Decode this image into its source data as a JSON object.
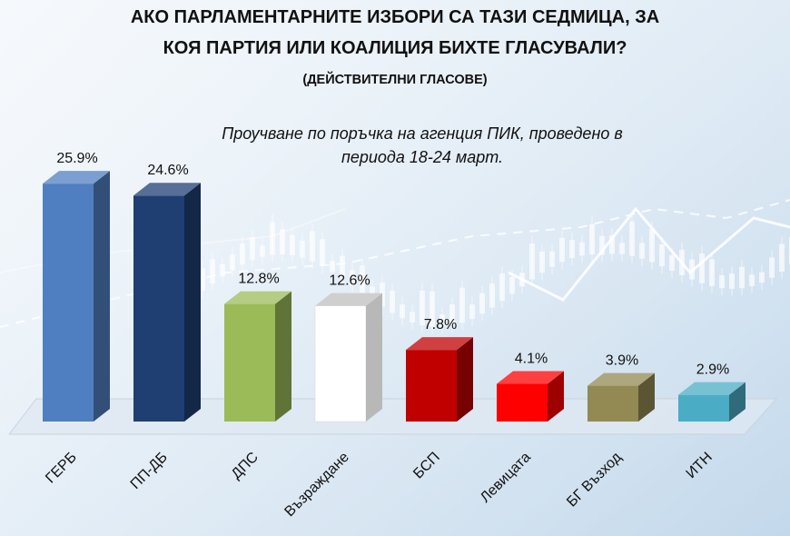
{
  "header": {
    "title_line1": "АКО ПАРЛАМЕНТАРНИТЕ ИЗБОРИ СА ТАЗИ СЕДМИЦА, ЗА",
    "title_line2": "КОЯ ПАРТИЯ ИЛИ КОАЛИЦИЯ БИХТЕ ГЛАСУВАЛИ?",
    "title_line3": "(ДЕЙСТВИТЕЛНИ ГЛАСОВЕ)",
    "subtitle_line1": "Проучване по поръчка на агенция ПИК, проведено в",
    "subtitle_line2": "периода 18-24 март."
  },
  "chart_data": {
    "type": "bar",
    "categories": [
      "ГЕРБ",
      "ПП-ДБ",
      "ДПС",
      "Възраждане",
      "БСП",
      "Левицата",
      "БГ Възход",
      "ИТН"
    ],
    "values": [
      25.9,
      24.6,
      12.8,
      12.6,
      7.8,
      4.1,
      3.9,
      2.9
    ],
    "data_labels": [
      "25.9%",
      "24.6%",
      "12.8%",
      "12.6%",
      "7.8%",
      "4.1%",
      "3.9%",
      "2.9%"
    ],
    "colors": [
      "#4f7fc0",
      "#1f3f73",
      "#9bbb59",
      "#ffffff",
      "#c00000",
      "#ff0000",
      "#938953",
      "#4bacc6"
    ],
    "ylim": [
      0,
      30
    ],
    "grid": false,
    "legend": "none",
    "style": "3d-column"
  }
}
